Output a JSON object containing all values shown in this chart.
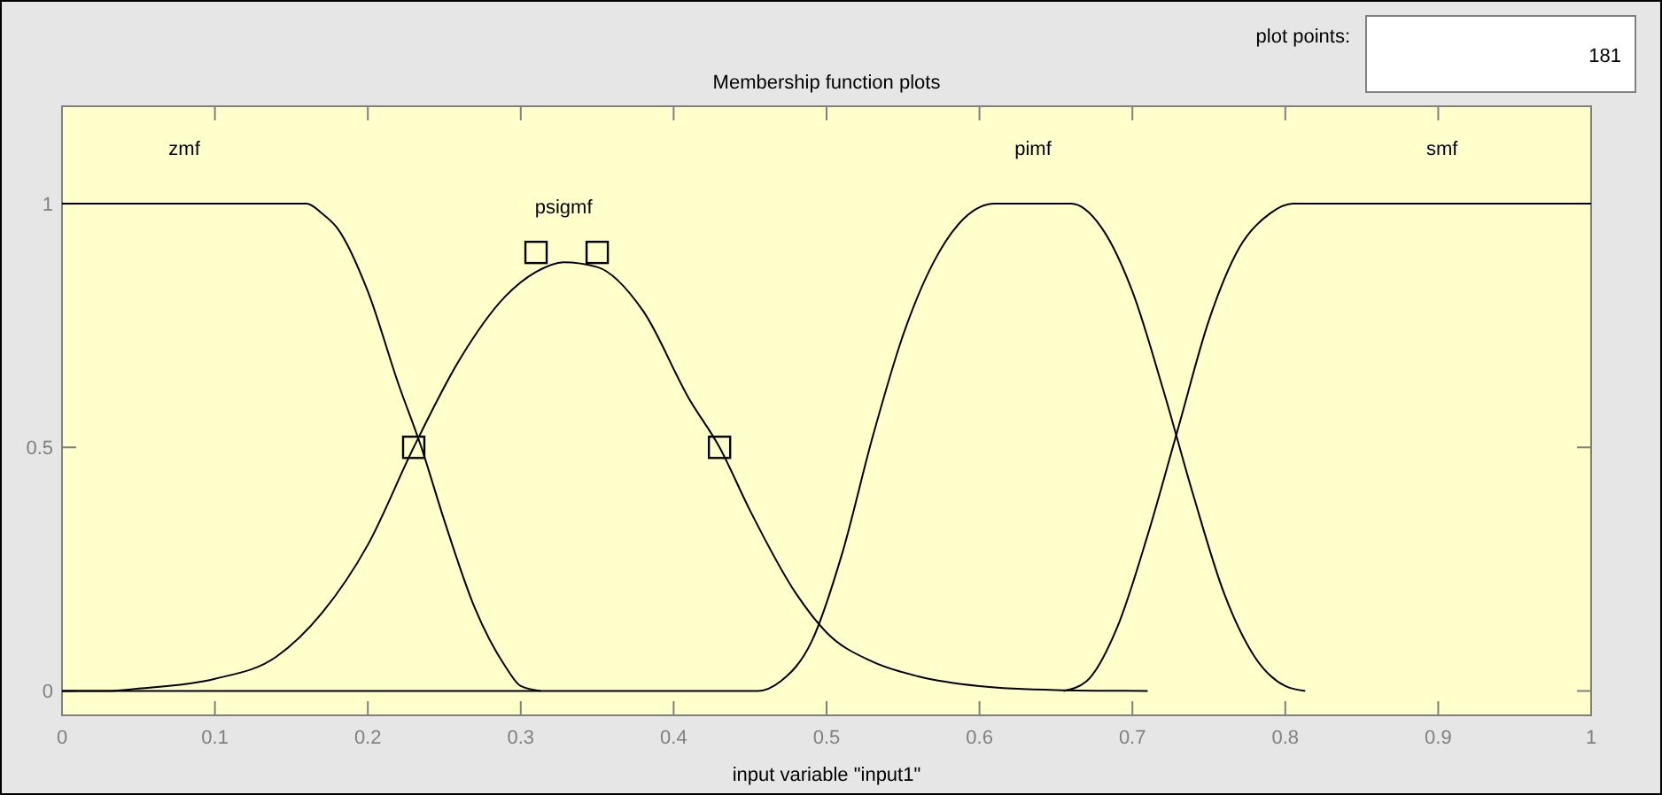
{
  "chart_data": {
    "type": "line",
    "title": "Membership function plots",
    "xlabel": "input variable \"input1\"",
    "annotations": [
      "plot points:",
      "181"
    ],
    "xlim": [
      0,
      1
    ],
    "xticks": [
      0,
      0.1,
      0.2,
      0.3,
      0.4,
      0.5,
      0.6,
      0.7,
      0.8,
      0.9,
      1
    ],
    "ylim": [
      -0.05,
      1.2
    ],
    "yticks": [
      0,
      0.5,
      1
    ],
    "grid": false,
    "marker": "none",
    "line_style": "solid",
    "series": [
      {
        "name": "zmf",
        "color": "#000000",
        "x": [
          0,
          0.16,
          0.17,
          0.18,
          0.2,
          0.22,
          0.235,
          0.25,
          0.27,
          0.29,
          0.3,
          0.313
        ],
        "values": [
          1,
          1,
          0.98,
          0.95,
          0.82,
          0.63,
          0.5,
          0.35,
          0.17,
          0.05,
          0.01,
          0
        ]
      },
      {
        "name": "psigmf",
        "color": "#000000",
        "x": [
          0,
          0.03,
          0.05,
          0.1,
          0.14,
          0.17,
          0.2,
          0.23,
          0.26,
          0.29,
          0.31,
          0.328,
          0.35,
          0.38,
          0.41,
          0.43,
          0.45,
          0.48,
          0.5,
          0.53,
          0.56,
          0.6,
          0.65,
          0.71
        ],
        "values": [
          0,
          0,
          0.005,
          0.025,
          0.07,
          0.16,
          0.3,
          0.5,
          0.68,
          0.81,
          0.86,
          0.88,
          0.87,
          0.78,
          0.6,
          0.5,
          0.37,
          0.2,
          0.12,
          0.06,
          0.03,
          0.01,
          0.002,
          0
        ]
      },
      {
        "name": "pimf",
        "color": "#000000",
        "x": [
          0,
          0.455,
          0.47,
          0.49,
          0.51,
          0.53,
          0.55,
          0.57,
          0.59,
          0.61,
          0.66,
          0.68,
          0.7,
          0.72,
          0.74,
          0.76,
          0.78,
          0.8,
          0.813
        ],
        "values": [
          0,
          0,
          0.02,
          0.1,
          0.28,
          0.52,
          0.73,
          0.88,
          0.97,
          1,
          1,
          0.95,
          0.82,
          0.62,
          0.4,
          0.2,
          0.07,
          0.01,
          0
        ]
      },
      {
        "name": "smf",
        "color": "#000000",
        "x": [
          0.655,
          0.67,
          0.69,
          0.71,
          0.73,
          0.75,
          0.77,
          0.79,
          0.805,
          1
        ],
        "values": [
          0,
          0.02,
          0.13,
          0.32,
          0.54,
          0.76,
          0.91,
          0.98,
          1,
          1
        ]
      },
      {
        "type": "scatter",
        "marker": "square",
        "color": "#000000",
        "x": [
          0.23,
          0.31,
          0.35,
          0.43
        ],
        "values": [
          0.5,
          0.9,
          0.9,
          0.5
        ]
      }
    ]
  }
}
